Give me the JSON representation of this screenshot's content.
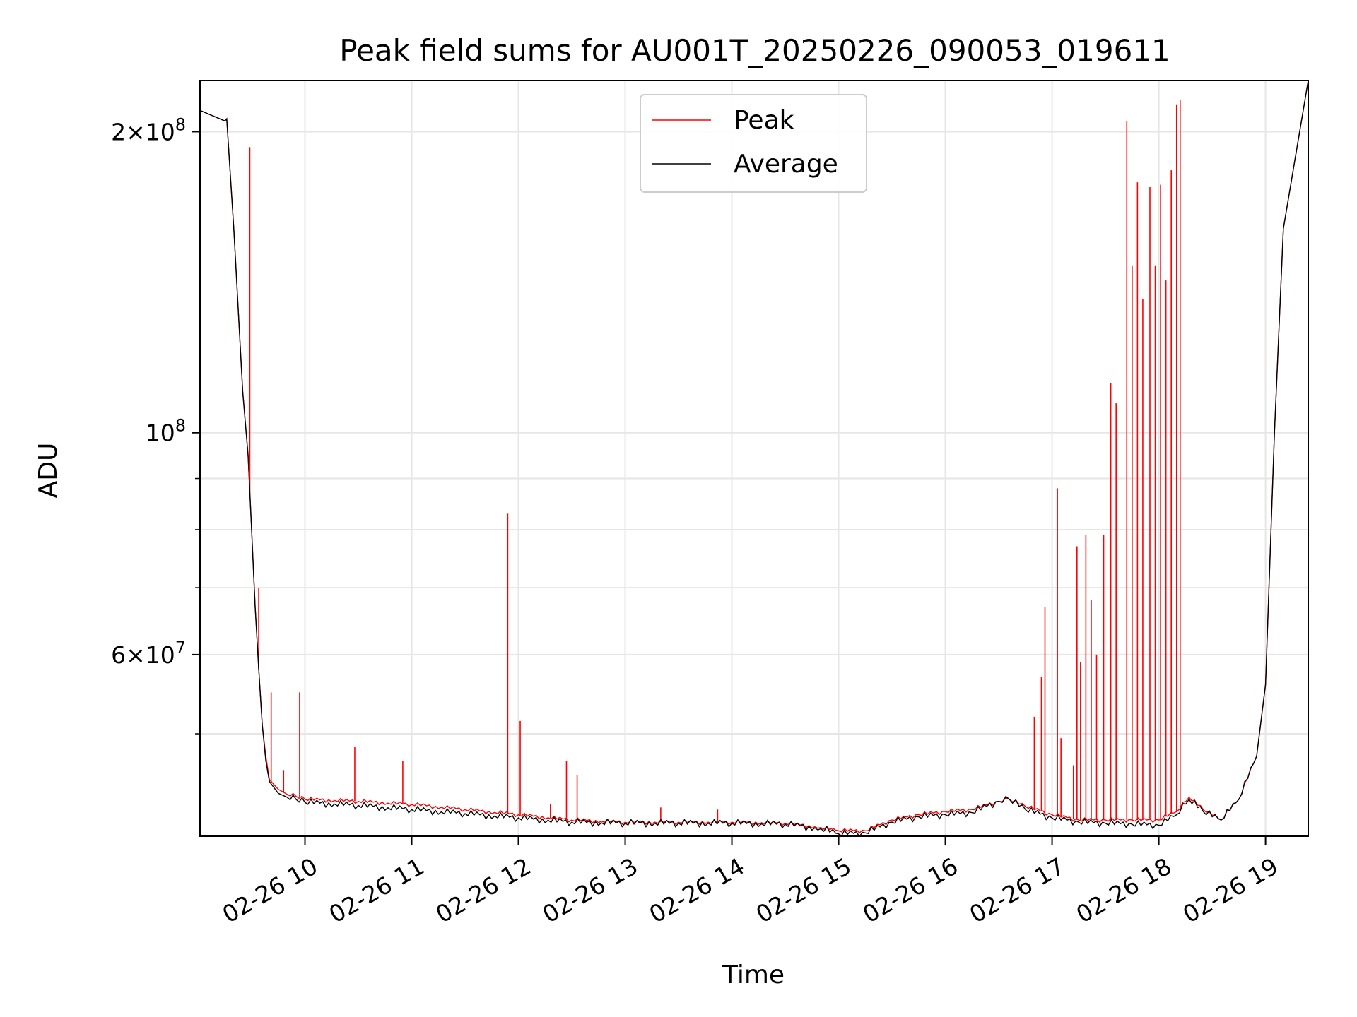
{
  "chart_data": {
    "type": "line",
    "title": "Peak field sums for AU001T_20250226_090053_019611",
    "xlabel": "Time",
    "ylabel": "ADU",
    "y_scale": "log",
    "ylim": [
      39500000,
      225000000
    ],
    "xlim": [
      "02-26 09:01",
      "02-26 19:24"
    ],
    "grid": true,
    "legend_position": "top-center",
    "x_ticks": [
      "02-26 10",
      "02-26 11",
      "02-26 12",
      "02-26 13",
      "02-26 14",
      "02-26 15",
      "02-26 16",
      "02-26 17",
      "02-26 18",
      "02-26 19"
    ],
    "y_major_ticks": [
      {
        "value": 100000000,
        "base": "10",
        "exp": "8",
        "coef": ""
      },
      {
        "value": 200000000,
        "base": "10",
        "exp": "8",
        "coef": "2×"
      },
      {
        "value": 60000000,
        "base": "10",
        "exp": "7",
        "coef": "6×"
      }
    ],
    "y_minor_ticks": [
      50000000,
      70000000,
      80000000,
      90000000
    ],
    "colors": {
      "peak": "#ff0000",
      "average": "#000000"
    },
    "series": [
      {
        "name": "Peak",
        "color": "#ff0000",
        "x": [
          "02-26 09:01",
          "02-26 09:15",
          "02-26 09:16",
          "02-26 09:20",
          "02-26 09:25",
          "02-26 09:28",
          "02-26 09:30",
          "02-26 09:32",
          "02-26 09:34",
          "02-26 09:36",
          "02-26 09:38",
          "02-26 09:40",
          "02-26 09:45",
          "02-26 09:50",
          "02-26 09:55",
          "02-26 10:00",
          "02-26 10:30",
          "02-26 11:00",
          "02-26 11:30",
          "02-26 12:00",
          "02-26 12:30",
          "02-26 13:00",
          "02-26 13:30",
          "02-26 14:00",
          "02-26 14:30",
          "02-26 14:50",
          "02-26 15:00",
          "02-26 15:15",
          "02-26 15:30",
          "02-26 15:45",
          "02-26 16:00",
          "02-26 16:15",
          "02-26 16:30",
          "02-26 16:36",
          "02-26 16:45",
          "02-26 17:00",
          "02-26 17:15",
          "02-26 17:30",
          "02-26 17:45",
          "02-26 18:00",
          "02-26 18:10",
          "02-26 18:17",
          "02-26 18:25",
          "02-26 18:35",
          "02-26 18:45",
          "02-26 18:55",
          "02-26 19:00",
          "02-26 19:05",
          "02-26 19:10",
          "02-26 19:24"
        ],
        "y": [
          210000000,
          205000000,
          206000000,
          160000000,
          110000000,
          95000000,
          80000000,
          67000000,
          58000000,
          51000000,
          47500000,
          45000000,
          44000000,
          43500000,
          43300000,
          43000000,
          42800000,
          42500000,
          42000000,
          41500000,
          41000000,
          40800000,
          40800000,
          40800000,
          40700000,
          40300000,
          40000000,
          40000000,
          41000000,
          41500000,
          41800000,
          42000000,
          42800000,
          43000000,
          42300000,
          41500000,
          41000000,
          41000000,
          41000000,
          41000000,
          41800000,
          43200000,
          42000000,
          41000000,
          43000000,
          47500000,
          56000000,
          100000000,
          160000000,
          225000000
        ],
        "spikes": [
          {
            "x": "02-26 09:29",
            "y": 193000000
          },
          {
            "x": "02-26 09:34",
            "y": 70000000
          },
          {
            "x": "02-26 09:41",
            "y": 55000000
          },
          {
            "x": "02-26 09:48",
            "y": 46000000
          },
          {
            "x": "02-26 09:57",
            "y": 55000000
          },
          {
            "x": "02-26 10:28",
            "y": 48500000
          },
          {
            "x": "02-26 10:55",
            "y": 47000000
          },
          {
            "x": "02-26 11:54",
            "y": 83000000
          },
          {
            "x": "02-26 12:01",
            "y": 51500000
          },
          {
            "x": "02-26 12:27",
            "y": 47000000
          },
          {
            "x": "02-26 12:33",
            "y": 45500000
          },
          {
            "x": "02-26 12:18",
            "y": 42500000
          },
          {
            "x": "02-26 13:20",
            "y": 42200000
          },
          {
            "x": "02-26 13:52",
            "y": 42000000
          },
          {
            "x": "02-26 16:50",
            "y": 52000000
          },
          {
            "x": "02-26 16:54",
            "y": 57000000
          },
          {
            "x": "02-26 16:56",
            "y": 67000000
          },
          {
            "x": "02-26 17:03",
            "y": 88000000
          },
          {
            "x": "02-26 17:05",
            "y": 49500000
          },
          {
            "x": "02-26 17:12",
            "y": 46500000
          },
          {
            "x": "02-26 17:14",
            "y": 77000000
          },
          {
            "x": "02-26 17:16",
            "y": 59000000
          },
          {
            "x": "02-26 17:19",
            "y": 79000000
          },
          {
            "x": "02-26 17:22",
            "y": 68000000
          },
          {
            "x": "02-26 17:25",
            "y": 60000000
          },
          {
            "x": "02-26 17:29",
            "y": 79000000
          },
          {
            "x": "02-26 17:33",
            "y": 112000000
          },
          {
            "x": "02-26 17:36",
            "y": 107000000
          },
          {
            "x": "02-26 17:42",
            "y": 205000000
          },
          {
            "x": "02-26 17:45",
            "y": 147000000
          },
          {
            "x": "02-26 17:48",
            "y": 178000000
          },
          {
            "x": "02-26 17:51",
            "y": 136000000
          },
          {
            "x": "02-26 17:55",
            "y": 176000000
          },
          {
            "x": "02-26 17:58",
            "y": 147000000
          },
          {
            "x": "02-26 18:01",
            "y": 177000000
          },
          {
            "x": "02-26 18:04",
            "y": 142000000
          },
          {
            "x": "02-26 18:07",
            "y": 183000000
          },
          {
            "x": "02-26 18:10",
            "y": 213000000
          },
          {
            "x": "02-26 18:12",
            "y": 215000000
          }
        ]
      },
      {
        "name": "Average",
        "color": "#000000",
        "x": [
          "02-26 09:01",
          "02-26 09:15",
          "02-26 09:16",
          "02-26 09:20",
          "02-26 09:25",
          "02-26 09:28",
          "02-26 09:30",
          "02-26 09:32",
          "02-26 09:34",
          "02-26 09:36",
          "02-26 09:38",
          "02-26 09:40",
          "02-26 09:45",
          "02-26 09:50",
          "02-26 09:55",
          "02-26 10:00",
          "02-26 10:30",
          "02-26 11:00",
          "02-26 11:30",
          "02-26 12:00",
          "02-26 12:30",
          "02-26 13:00",
          "02-26 13:30",
          "02-26 14:00",
          "02-26 14:30",
          "02-26 14:50",
          "02-26 15:00",
          "02-26 15:15",
          "02-26 15:30",
          "02-26 15:45",
          "02-26 16:00",
          "02-26 16:15",
          "02-26 16:30",
          "02-26 16:36",
          "02-26 16:45",
          "02-26 17:00",
          "02-26 17:15",
          "02-26 17:30",
          "02-26 17:45",
          "02-26 18:00",
          "02-26 18:10",
          "02-26 18:17",
          "02-26 18:25",
          "02-26 18:35",
          "02-26 18:45",
          "02-26 18:55",
          "02-26 19:00",
          "02-26 19:05",
          "02-26 19:10",
          "02-26 19:24"
        ],
        "y": [
          210000000,
          205000000,
          206000000,
          160000000,
          110000000,
          95000000,
          80000000,
          67000000,
          58000000,
          51000000,
          47000000,
          44800000,
          43600000,
          43200000,
          43000000,
          42700000,
          42400000,
          42000000,
          41600000,
          41200000,
          40800000,
          40700000,
          40700000,
          40700000,
          40600000,
          40200000,
          39700000,
          39800000,
          40800000,
          41300000,
          41500000,
          41700000,
          42800000,
          43000000,
          42000000,
          41200000,
          40800000,
          40700000,
          40600000,
          40500000,
          41500000,
          43000000,
          41800000,
          41000000,
          43000000,
          47500000,
          56000000,
          100000000,
          160000000,
          225000000
        ]
      }
    ]
  }
}
